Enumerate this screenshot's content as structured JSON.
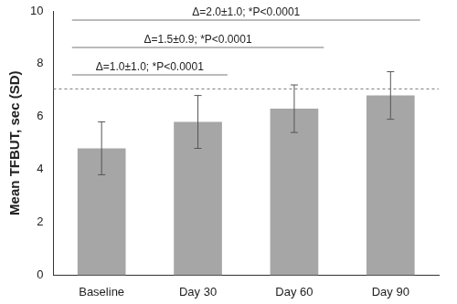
{
  "chart_data": {
    "type": "bar",
    "y_label": "Mean TFBUT, sec (SD)",
    "categories": [
      "Baseline",
      "Day 30",
      "Day 60",
      "Day 90"
    ],
    "values": [
      4.8,
      5.8,
      6.3,
      6.8
    ],
    "error_bars": [
      1.0,
      1.0,
      0.9,
      0.9
    ],
    "color": "#a6a6a6",
    "reference_line": 7.05,
    "comparisons": [
      {
        "from": "Baseline",
        "to": "Day 30",
        "label": "Δ=1.0±1.0; *P<0.0001"
      },
      {
        "from": "Baseline",
        "to": "Day 60",
        "label": "Δ=1.5±0.9; *P<0.0001"
      },
      {
        "from": "Baseline",
        "to": "Day 90",
        "label": "Δ=2.0±1.0; *P<0.0001"
      }
    ],
    "ylim": [
      0,
      10
    ],
    "yticks": [
      0,
      2,
      4,
      6,
      8,
      10
    ],
    "grid": false
  }
}
